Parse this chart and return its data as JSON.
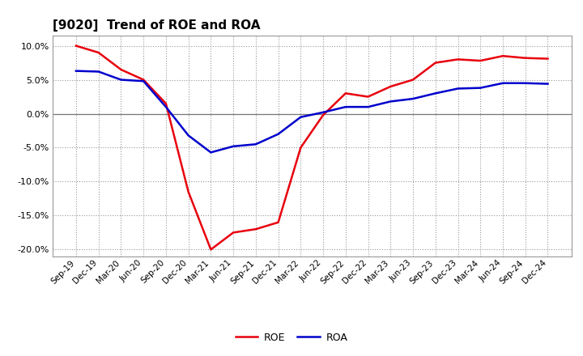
{
  "title": "[9020]  Trend of ROE and ROA",
  "x_labels": [
    "Sep-19",
    "Dec-19",
    "Mar-20",
    "Jun-20",
    "Sep-20",
    "Dec-20",
    "Mar-21",
    "Jun-21",
    "Sep-21",
    "Dec-21",
    "Mar-22",
    "Jun-22",
    "Sep-22",
    "Dec-22",
    "Mar-23",
    "Jun-23",
    "Sep-23",
    "Dec-23",
    "Mar-24",
    "Jun-24",
    "Sep-24",
    "Dec-24"
  ],
  "roe": [
    10.0,
    9.0,
    6.5,
    5.0,
    1.5,
    -11.5,
    -20.0,
    -17.5,
    -17.0,
    -16.0,
    -5.0,
    -0.2,
    3.0,
    2.5,
    4.0,
    5.0,
    7.5,
    8.0,
    7.8,
    8.5,
    8.2,
    8.1
  ],
  "roa": [
    6.3,
    6.2,
    5.0,
    4.8,
    1.0,
    -3.2,
    -5.7,
    -4.8,
    -4.5,
    -3.0,
    -0.5,
    0.2,
    1.0,
    1.0,
    1.8,
    2.2,
    3.0,
    3.7,
    3.8,
    4.5,
    4.5,
    4.4
  ],
  "roe_color": "#e8000d",
  "roa_color": "#0000cc",
  "grid_color": "#999999",
  "background_color": "#ffffff",
  "ylim": [
    -21.0,
    11.5
  ],
  "yticks": [
    -20.0,
    -15.0,
    -10.0,
    -5.0,
    0.0,
    5.0,
    10.0
  ],
  "legend_roe": "ROE",
  "legend_roa": "ROA",
  "linewidth": 1.8
}
